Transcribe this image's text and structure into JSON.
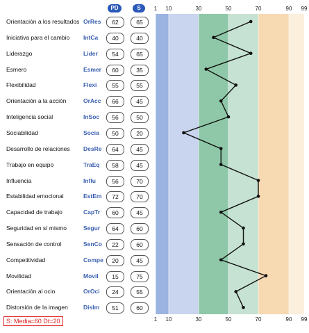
{
  "headers": {
    "pd": "PD",
    "s": "S"
  },
  "note": "S: Media=60 Dt=20",
  "colors": {
    "band1": "#9bb3e0",
    "band2": "#c9d4ee",
    "band3": "#8fc8a8",
    "band4": "#c5e2d3",
    "band5": "#f7d9b2",
    "band6": "#fcefdc",
    "line": "#111111",
    "code_text": "#3a5fb0",
    "header_bg": "#2b59b8",
    "note_red": "#e02020"
  },
  "chart_data": {
    "type": "line",
    "orientation": "vertical-profile",
    "x_ticks": [
      "1",
      "10",
      "30",
      "50",
      "70",
      "90",
      "99"
    ],
    "x_tick_values": [
      1,
      10,
      30,
      50,
      70,
      90,
      99
    ],
    "bands": [
      {
        "from": 1,
        "to": 10
      },
      {
        "from": 10,
        "to": 30
      },
      {
        "from": 30,
        "to": 50
      },
      {
        "from": 50,
        "to": 70
      },
      {
        "from": 70,
        "to": 90
      },
      {
        "from": 90,
        "to": 99
      }
    ],
    "rows": [
      {
        "trait": "Orientación a los resultados",
        "code": "OrRes",
        "pd": 62,
        "s": 65
      },
      {
        "trait": "Iniciativa para el cambio",
        "code": "IntCa",
        "pd": 40,
        "s": 40
      },
      {
        "trait": "Liderazgo",
        "code": "Lider",
        "pd": 54,
        "s": 65
      },
      {
        "trait": "Esmero",
        "code": "Esmer",
        "pd": 60,
        "s": 35
      },
      {
        "trait": "Flexibilidad",
        "code": "Flexi",
        "pd": 55,
        "s": 55
      },
      {
        "trait": "Orientación a la acción",
        "code": "OrAcc",
        "pd": 66,
        "s": 45
      },
      {
        "trait": "Inteligencia social",
        "code": "InSoc",
        "pd": 56,
        "s": 50
      },
      {
        "trait": "Sociabilidad",
        "code": "Socia",
        "pd": 50,
        "s": 20
      },
      {
        "trait": "Desarrollo de relaciones",
        "code": "DesRe",
        "pd": 64,
        "s": 45
      },
      {
        "trait": "Trabajo en equipo",
        "code": "TraEq",
        "pd": 58,
        "s": 45
      },
      {
        "trait": "Influencia",
        "code": "Influ",
        "pd": 56,
        "s": 70
      },
      {
        "trait": "Estabilidad emocional",
        "code": "EstEm",
        "pd": 72,
        "s": 70
      },
      {
        "trait": "Capacidad de trabajo",
        "code": "CapTr",
        "pd": 60,
        "s": 45
      },
      {
        "trait": "Seguridad en sí mismo",
        "code": "Segur",
        "pd": 64,
        "s": 60
      },
      {
        "trait": "Sensación de control",
        "code": "SenCo",
        "pd": 22,
        "s": 60
      },
      {
        "trait": "Competitividad",
        "code": "Compe",
        "pd": 20,
        "s": 45
      },
      {
        "trait": "Movilidad",
        "code": "Movil",
        "pd": 15,
        "s": 75
      },
      {
        "trait": "Orientación al ocio",
        "code": "OrOci",
        "pd": 24,
        "s": 55
      },
      {
        "trait": "Distorsión de la imagen",
        "code": "DisIm",
        "pd": 51,
        "s": 60
      }
    ]
  }
}
